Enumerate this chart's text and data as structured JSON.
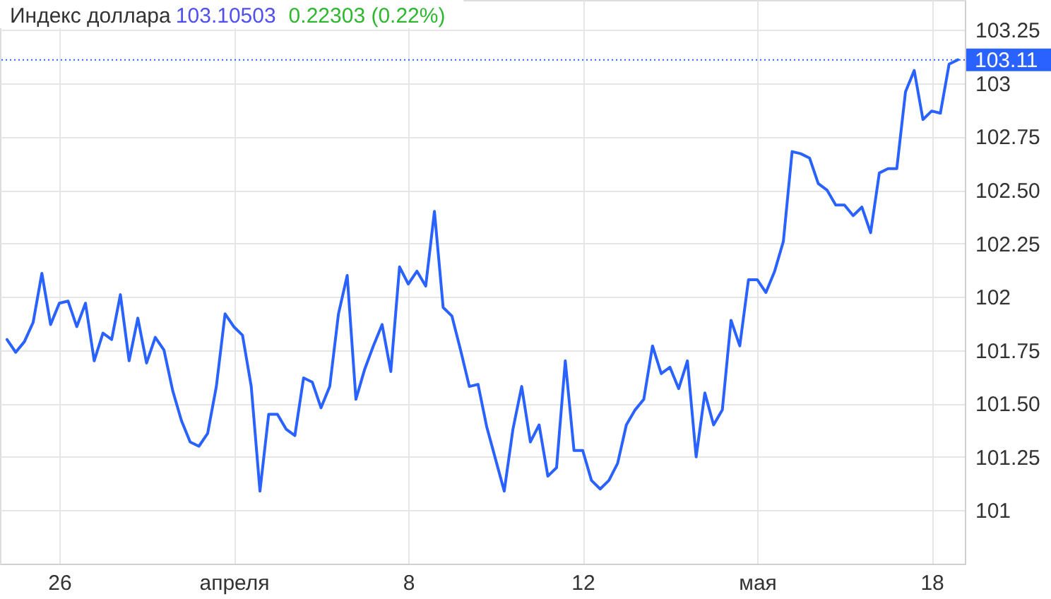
{
  "chart_data": {
    "type": "line",
    "title": "Индекс доллара",
    "annotations": [
      "103.10503",
      "0.22303 (0.22%)"
    ],
    "categories": [
      null,
      null,
      null,
      null,
      null,
      null,
      "26",
      null,
      null,
      null,
      null,
      null,
      null,
      null,
      null,
      null,
      null,
      null,
      null,
      null,
      null,
      null,
      null,
      null,
      null,
      null,
      "апреля",
      null,
      null,
      null,
      null,
      null,
      null,
      null,
      null,
      null,
      null,
      null,
      null,
      null,
      null,
      null,
      null,
      null,
      null,
      null,
      "8",
      null,
      null,
      null,
      null,
      null,
      null,
      null,
      null,
      null,
      null,
      null,
      null,
      null,
      null,
      null,
      null,
      null,
      null,
      null,
      "12",
      null,
      null,
      null,
      null,
      null,
      null,
      null,
      null,
      null,
      null,
      null,
      null,
      null,
      null,
      null,
      null,
      null,
      null,
      null,
      "мая",
      null,
      null,
      null,
      null,
      null,
      null,
      null,
      null,
      null,
      null,
      null,
      null,
      null,
      null,
      null,
      null,
      null,
      null,
      null,
      "18",
      null,
      null,
      null
    ],
    "values": [
      101.8,
      101.74,
      101.79,
      101.88,
      102.11,
      101.87,
      101.97,
      101.98,
      101.86,
      101.97,
      101.7,
      101.83,
      101.8,
      102.01,
      101.7,
      101.9,
      101.69,
      101.81,
      101.75,
      101.56,
      101.42,
      101.32,
      101.3,
      101.36,
      101.58,
      101.92,
      101.86,
      101.82,
      101.58,
      101.09,
      101.45,
      101.45,
      101.38,
      101.35,
      101.62,
      101.6,
      101.48,
      101.58,
      101.92,
      102.1,
      101.52,
      101.66,
      101.77,
      101.87,
      101.65,
      102.14,
      102.06,
      102.12,
      102.05,
      102.4,
      101.95,
      101.91,
      101.75,
      101.58,
      101.59,
      101.39,
      101.24,
      101.09,
      101.38,
      101.58,
      101.32,
      101.4,
      101.16,
      101.2,
      101.7,
      101.28,
      101.28,
      101.14,
      101.1,
      101.14,
      101.22,
      101.4,
      101.47,
      101.52,
      101.77,
      101.64,
      101.67,
      101.57,
      101.7,
      101.25,
      101.55,
      101.4,
      101.47,
      101.89,
      101.77,
      102.08,
      102.08,
      102.02,
      102.12,
      102.26,
      102.68,
      102.67,
      102.65,
      102.53,
      102.5,
      102.43,
      102.43,
      102.38,
      102.42,
      102.3,
      102.58,
      102.6,
      102.6,
      102.96,
      103.06,
      102.83,
      102.87,
      102.86,
      103.09,
      103.11
    ],
    "color": "#2962ff",
    "ylim": [
      100.75,
      103.39
    ],
    "yticks": [
      101,
      101.25,
      {
        "value": 101.5,
        "label": "101.50"
      },
      101.75,
      102,
      102.25,
      {
        "value": 102.5,
        "label": "102.50"
      },
      102.75,
      103,
      103.25
    ],
    "grid": true,
    "ref_lines": [
      {
        "axis": "y",
        "value": 103.11,
        "label": "103.11",
        "color": "#2962ff",
        "line_style": "dotted"
      }
    ]
  }
}
